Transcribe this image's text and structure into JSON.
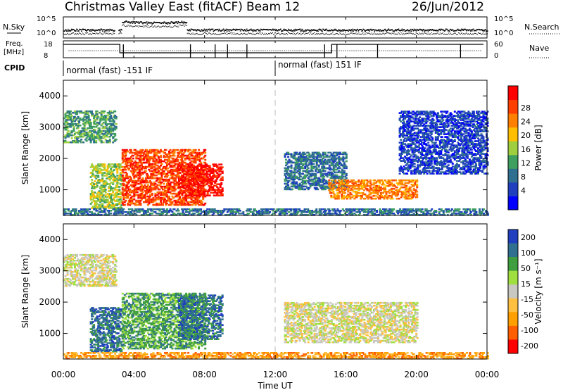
{
  "header": {
    "title": "Christmas Valley East (fitACF)",
    "beam": "Beam 12",
    "date": "26/Jun/2012"
  },
  "status": {
    "nsky_label": "N.Sky",
    "nsearch_label": "N.Search",
    "freq_label_line1": "Freq.",
    "freq_label_line2": "[MHz]",
    "nave_label": "Nave",
    "cpid_label": "CPID",
    "nsky_ticks": [
      "10^5",
      "10^0"
    ],
    "nsearch_ticks": [
      "10^5",
      "10^0"
    ],
    "freq_ticks": [
      "18",
      "8"
    ],
    "nave_ticks": [
      "60",
      "0"
    ],
    "cpid_segments": [
      {
        "label": "normal (fast) -151 IF",
        "start_hour": 0,
        "end_hour": 12
      },
      {
        "label": "normal (fast) 151 IF",
        "start_hour": 12,
        "end_hour": 24
      }
    ]
  },
  "colors": {
    "power_scale": [
      "#0000ff",
      "#1f3fbf",
      "#2f6f8f",
      "#3f9f5f",
      "#9fcf3f",
      "#ffbf00",
      "#ff7f00",
      "#ff3f00",
      "#ff0000"
    ],
    "velocity_scale": [
      "#1f3fbf",
      "#2f6f8f",
      "#3f9f3f",
      "#9fdf3f",
      "#c8c8c0",
      "#ffbf40",
      "#ff9f00",
      "#ff5f00",
      "#ff0000"
    ]
  },
  "chart_data": [
    {
      "type": "heatmap",
      "name": "power",
      "xlabel": "",
      "ylabel": "Slant Range [km]",
      "xlim": [
        0,
        24
      ],
      "ylim": [
        180,
        4500
      ],
      "yticks": [
        1000,
        2000,
        3000,
        4000
      ],
      "colorbar_label": "Power [dB]",
      "colorbar_ticks": [
        "4",
        "8",
        "12",
        "16",
        "20",
        "24",
        "28"
      ],
      "features": [
        {
          "hour_start": 0,
          "hour_end": 3,
          "range_start": 2500,
          "range_end": 3500,
          "level": 3
        },
        {
          "hour_start": 1.5,
          "hour_end": 3.3,
          "range_start": 400,
          "range_end": 1800,
          "level": 4
        },
        {
          "hour_start": 3.3,
          "hour_end": 8,
          "range_start": 500,
          "range_end": 2300,
          "level": 7
        },
        {
          "hour_start": 6.5,
          "hour_end": 9,
          "range_start": 800,
          "range_end": 1800,
          "level": 8
        },
        {
          "hour_start": 0,
          "hour_end": 24,
          "range_start": 180,
          "range_end": 400,
          "level": 2
        },
        {
          "hour_start": 12.5,
          "hour_end": 16,
          "range_start": 1000,
          "range_end": 2200,
          "level": 2
        },
        {
          "hour_start": 15,
          "hour_end": 20,
          "range_start": 700,
          "range_end": 1300,
          "level": 6
        },
        {
          "hour_start": 19,
          "hour_end": 24,
          "range_start": 1500,
          "range_end": 3500,
          "level": 1
        }
      ]
    },
    {
      "type": "heatmap",
      "name": "velocity",
      "xlabel": "Time UT",
      "ylabel": "Slant Range [km]",
      "xlim": [
        0,
        24
      ],
      "ylim": [
        180,
        4500
      ],
      "yticks": [
        1000,
        2000,
        3000,
        4000
      ],
      "xticks": [
        "00:00",
        "04:00",
        "08:00",
        "12:00",
        "16:00",
        "20:00",
        "00:00"
      ],
      "colorbar_label": "Velocity [m s⁻¹]",
      "colorbar_ticks": [
        "200",
        "100",
        "50",
        "15",
        "-15",
        "-50",
        "-100",
        "-200"
      ],
      "features": [
        {
          "hour_start": 0,
          "hour_end": 3,
          "range_start": 2500,
          "range_end": 3500,
          "level": 4
        },
        {
          "hour_start": 1.5,
          "hour_end": 3.3,
          "range_start": 400,
          "range_end": 1800,
          "level": 1
        },
        {
          "hour_start": 3.3,
          "hour_end": 8,
          "range_start": 500,
          "range_end": 2300,
          "level": 2
        },
        {
          "hour_start": 6.5,
          "hour_end": 9,
          "range_start": 800,
          "range_end": 2200,
          "level": 1
        },
        {
          "hour_start": 0,
          "hour_end": 24,
          "range_start": 180,
          "range_end": 400,
          "level": 6
        },
        {
          "hour_start": 12.5,
          "hour_end": 20,
          "range_start": 700,
          "range_end": 2000,
          "level": 4
        }
      ]
    }
  ]
}
